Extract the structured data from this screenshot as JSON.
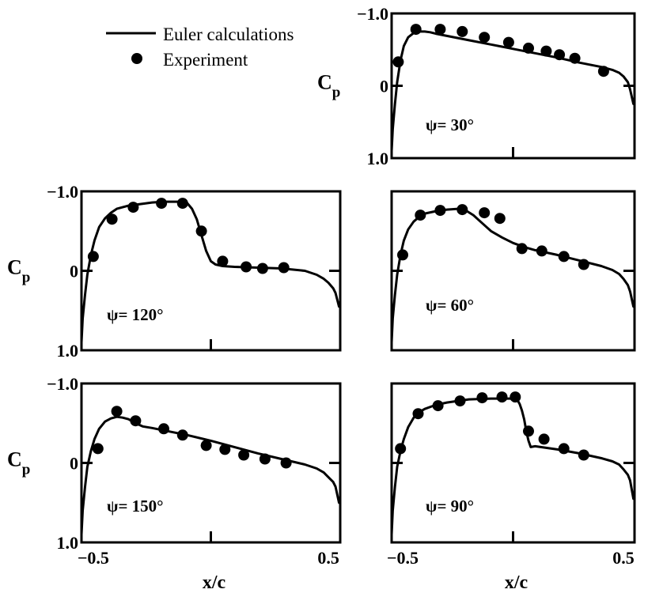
{
  "legend": {
    "line_label": "Euler calculations",
    "marker_label": "Experiment"
  },
  "axis_common": {
    "xlabel": "x/c",
    "ylabel_main": "C",
    "ylabel_sub": "p",
    "x_ticks": [
      -0.5,
      0.5
    ],
    "x_tick_labels": [
      "−0.5",
      "0.5"
    ],
    "y_ticks": [
      -1.0,
      0,
      1.0
    ],
    "y_tick_labels": [
      "−1.0",
      "0",
      "1.0"
    ],
    "xlim": [
      -0.55,
      0.55
    ],
    "ylim": [
      1.0,
      -1.0
    ],
    "y_inverted": true
  },
  "chart_data": [
    {
      "type": "line",
      "annotation": "ψ= 30°",
      "x_range": [
        -0.55,
        0.55
      ],
      "y_range": [
        1.0,
        -1.0
      ],
      "series": [
        {
          "name": "Euler calculations",
          "kind": "line",
          "x": [
            -0.55,
            -0.545,
            -0.535,
            -0.525,
            -0.51,
            -0.495,
            -0.475,
            -0.45,
            -0.425,
            -0.4,
            -0.375,
            -0.35,
            -0.3,
            -0.2,
            -0.1,
            0.0,
            0.1,
            0.2,
            0.3,
            0.4,
            0.45,
            0.48,
            0.5,
            0.52,
            0.53,
            0.545
          ],
          "y": [
            0.9,
            0.6,
            0.25,
            -0.05,
            -0.35,
            -0.55,
            -0.67,
            -0.73,
            -0.75,
            -0.75,
            -0.74,
            -0.72,
            -0.69,
            -0.63,
            -0.57,
            -0.51,
            -0.45,
            -0.39,
            -0.32,
            -0.26,
            -0.22,
            -0.18,
            -0.13,
            -0.05,
            0.05,
            0.25
          ]
        },
        {
          "name": "Experiment",
          "kind": "scatter",
          "x": [
            -0.52,
            -0.44,
            -0.33,
            -0.23,
            -0.13,
            -0.02,
            0.07,
            0.15,
            0.21,
            0.28,
            0.41
          ],
          "y": [
            -0.33,
            -0.78,
            -0.78,
            -0.75,
            -0.67,
            -0.6,
            -0.52,
            -0.48,
            -0.43,
            -0.38,
            -0.2
          ]
        }
      ]
    },
    {
      "type": "line",
      "annotation": "ψ= 120°",
      "x_range": [
        -0.55,
        0.55
      ],
      "y_range": [
        1.0,
        -1.0
      ],
      "series": [
        {
          "name": "Euler calculations",
          "kind": "line",
          "x": [
            -0.55,
            -0.545,
            -0.535,
            -0.525,
            -0.51,
            -0.495,
            -0.475,
            -0.45,
            -0.425,
            -0.4,
            -0.375,
            -0.35,
            -0.3,
            -0.25,
            -0.2,
            -0.15,
            -0.12,
            -0.1,
            -0.08,
            -0.06,
            -0.04,
            -0.02,
            0.0,
            0.02,
            0.05,
            0.1,
            0.2,
            0.3,
            0.4,
            0.45,
            0.48,
            0.5,
            0.52,
            0.53,
            0.545
          ],
          "y": [
            0.9,
            0.6,
            0.3,
            0.05,
            -0.2,
            -0.38,
            -0.55,
            -0.66,
            -0.73,
            -0.78,
            -0.8,
            -0.82,
            -0.84,
            -0.86,
            -0.87,
            -0.87,
            -0.87,
            -0.85,
            -0.78,
            -0.65,
            -0.45,
            -0.25,
            -0.12,
            -0.08,
            -0.06,
            -0.05,
            -0.04,
            -0.03,
            0.0,
            0.05,
            0.1,
            0.15,
            0.22,
            0.28,
            0.45
          ]
        },
        {
          "name": "Experiment",
          "kind": "scatter",
          "x": [
            -0.5,
            -0.42,
            -0.33,
            -0.21,
            -0.12,
            -0.04,
            0.05,
            0.15,
            0.22,
            0.31
          ],
          "y": [
            -0.18,
            -0.65,
            -0.8,
            -0.85,
            -0.85,
            -0.5,
            -0.12,
            -0.05,
            -0.03,
            -0.04
          ]
        }
      ]
    },
    {
      "type": "line",
      "annotation": "ψ= 60°",
      "x_range": [
        -0.55,
        0.55
      ],
      "y_range": [
        1.0,
        -1.0
      ],
      "series": [
        {
          "name": "Euler calculations",
          "kind": "line",
          "x": [
            -0.55,
            -0.545,
            -0.535,
            -0.525,
            -0.51,
            -0.495,
            -0.475,
            -0.45,
            -0.425,
            -0.4,
            -0.35,
            -0.3,
            -0.25,
            -0.22,
            -0.18,
            -0.14,
            -0.1,
            -0.05,
            0.0,
            0.05,
            0.1,
            0.2,
            0.3,
            0.4,
            0.45,
            0.48,
            0.5,
            0.52,
            0.53,
            0.545
          ],
          "y": [
            0.9,
            0.6,
            0.3,
            0.05,
            -0.2,
            -0.38,
            -0.52,
            -0.62,
            -0.68,
            -0.72,
            -0.75,
            -0.77,
            -0.78,
            -0.77,
            -0.7,
            -0.6,
            -0.5,
            -0.42,
            -0.35,
            -0.3,
            -0.26,
            -0.2,
            -0.13,
            -0.06,
            -0.01,
            0.04,
            0.1,
            0.18,
            0.26,
            0.45
          ]
        },
        {
          "name": "Experiment",
          "kind": "scatter",
          "x": [
            -0.5,
            -0.42,
            -0.33,
            -0.23,
            -0.13,
            -0.06,
            0.04,
            0.13,
            0.23,
            0.32
          ],
          "y": [
            -0.2,
            -0.7,
            -0.76,
            -0.77,
            -0.73,
            -0.66,
            -0.28,
            -0.25,
            -0.18,
            -0.08
          ]
        }
      ]
    },
    {
      "type": "line",
      "annotation": "ψ= 150°",
      "x_range": [
        -0.55,
        0.55
      ],
      "y_range": [
        1.0,
        -1.0
      ],
      "series": [
        {
          "name": "Euler calculations",
          "kind": "line",
          "x": [
            -0.55,
            -0.545,
            -0.535,
            -0.525,
            -0.51,
            -0.495,
            -0.475,
            -0.45,
            -0.425,
            -0.4,
            -0.375,
            -0.35,
            -0.32,
            -0.29,
            -0.25,
            -0.2,
            -0.1,
            0.0,
            0.1,
            0.2,
            0.3,
            0.4,
            0.45,
            0.48,
            0.5,
            0.52,
            0.53,
            0.545
          ],
          "y": [
            0.9,
            0.6,
            0.3,
            0.05,
            -0.15,
            -0.3,
            -0.43,
            -0.52,
            -0.56,
            -0.58,
            -0.57,
            -0.55,
            -0.5,
            -0.46,
            -0.44,
            -0.41,
            -0.35,
            -0.28,
            -0.2,
            -0.12,
            -0.05,
            0.02,
            0.07,
            0.12,
            0.18,
            0.24,
            0.3,
            0.5
          ]
        },
        {
          "name": "Experiment",
          "kind": "scatter",
          "x": [
            -0.48,
            -0.4,
            -0.32,
            -0.2,
            -0.12,
            -0.02,
            0.06,
            0.14,
            0.23,
            0.32
          ],
          "y": [
            -0.18,
            -0.65,
            -0.53,
            -0.43,
            -0.35,
            -0.22,
            -0.17,
            -0.1,
            -0.05,
            0.0
          ]
        }
      ]
    },
    {
      "type": "line",
      "annotation": "ψ= 90°",
      "x_range": [
        -0.55,
        0.55
      ],
      "y_range": [
        1.0,
        -1.0
      ],
      "series": [
        {
          "name": "Euler calculations",
          "kind": "line",
          "x": [
            -0.55,
            -0.545,
            -0.535,
            -0.525,
            -0.51,
            -0.495,
            -0.475,
            -0.45,
            -0.425,
            -0.4,
            -0.35,
            -0.3,
            -0.25,
            -0.2,
            -0.1,
            0.0,
            0.02,
            0.03,
            0.04,
            0.05,
            0.06,
            0.07,
            0.08,
            0.1,
            0.2,
            0.3,
            0.4,
            0.45,
            0.48,
            0.5,
            0.52,
            0.53,
            0.545
          ],
          "y": [
            0.9,
            0.6,
            0.3,
            0.05,
            -0.15,
            -0.3,
            -0.45,
            -0.57,
            -0.64,
            -0.68,
            -0.73,
            -0.76,
            -0.78,
            -0.8,
            -0.81,
            -0.81,
            -0.79,
            -0.74,
            -0.66,
            -0.55,
            -0.4,
            -0.28,
            -0.2,
            -0.21,
            -0.17,
            -0.12,
            -0.06,
            -0.02,
            0.02,
            0.08,
            0.15,
            0.22,
            0.45
          ]
        },
        {
          "name": "Experiment",
          "kind": "scatter",
          "x": [
            -0.51,
            -0.43,
            -0.34,
            -0.24,
            -0.14,
            -0.05,
            0.01,
            0.07,
            0.14,
            0.23,
            0.32
          ],
          "y": [
            -0.18,
            -0.62,
            -0.72,
            -0.78,
            -0.82,
            -0.83,
            -0.83,
            -0.4,
            -0.3,
            -0.18,
            -0.1
          ]
        }
      ]
    }
  ]
}
